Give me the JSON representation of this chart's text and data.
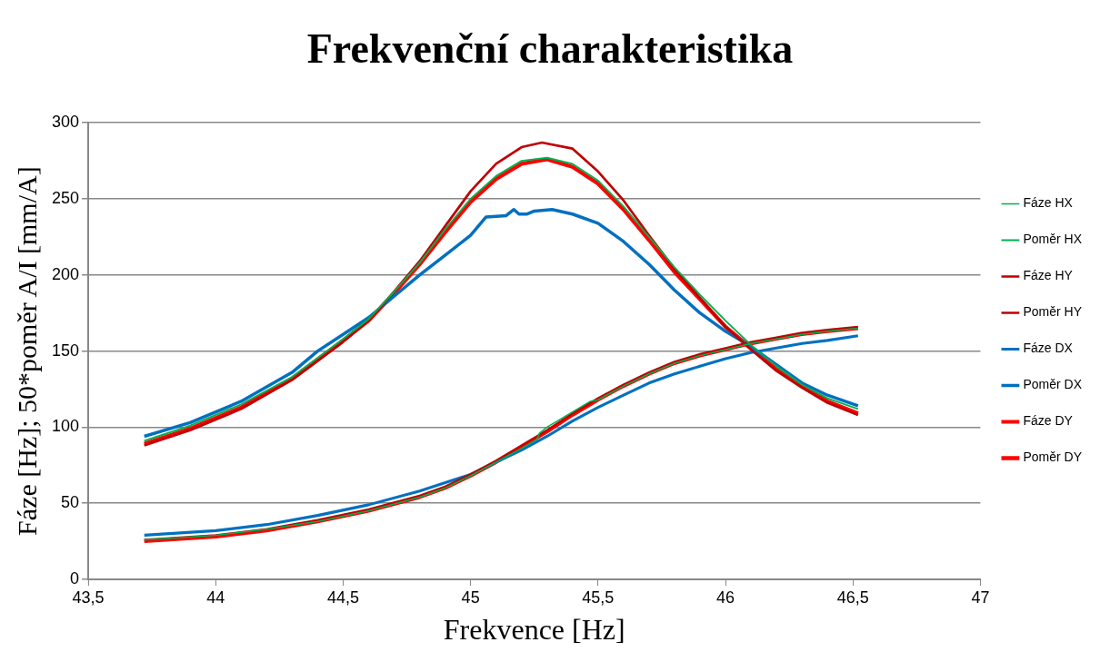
{
  "chart_data": {
    "type": "line",
    "title": "Frekvenční charakteristika",
    "xlabel": "Frekvence [Hz]",
    "ylabel": "Fáze [Hz]; 50*poměr A/I [mm/A]",
    "xlim": [
      43.5,
      47
    ],
    "xticks": [
      {
        "value": 43.5,
        "label": "43,5"
      },
      44,
      {
        "value": 44.5,
        "label": "44,5"
      },
      45,
      {
        "value": 45.5,
        "label": "45,5"
      },
      46,
      {
        "value": 46.5,
        "label": "46,5"
      },
      47
    ],
    "ylim": [
      0,
      300
    ],
    "yticks": [
      0,
      50,
      100,
      150,
      200,
      250,
      300
    ],
    "grid": "y",
    "legend": "right",
    "marker": "none",
    "line_style": "solid",
    "series": [
      {
        "name": "Fáze HX",
        "color": "#00b050",
        "x": [
          43.72,
          44.0,
          44.2,
          44.4,
          44.6,
          44.8,
          44.9,
          45.0,
          45.1,
          45.2,
          45.26,
          45.27,
          45.3,
          45.4,
          45.47,
          45.5,
          45.6,
          45.7,
          45.8,
          45.9,
          46.0,
          46.1,
          46.2,
          46.3,
          46.4,
          46.52
        ],
        "values": [
          26,
          29,
          33,
          38,
          45,
          54,
          60,
          68,
          77,
          86,
          92,
          96,
          100,
          110,
          117,
          118,
          127,
          135,
          142,
          147,
          151,
          155,
          158,
          161,
          163,
          165
        ]
      },
      {
        "name": "Poměr HX",
        "color": "#00b050",
        "x": [
          43.72,
          43.9,
          44.1,
          44.3,
          44.5,
          44.6,
          44.7,
          44.8,
          44.9,
          45.0,
          45.1,
          45.2,
          45.3,
          45.4,
          45.5,
          45.6,
          45.7,
          45.8,
          45.9,
          46.0,
          46.1,
          46.2,
          46.3,
          46.4,
          46.52
        ],
        "values": [
          91,
          101,
          115,
          133,
          158,
          171,
          189,
          208,
          230,
          250,
          265,
          275,
          277,
          273,
          262,
          245,
          225,
          205,
          187,
          170,
          154,
          140,
          128,
          119,
          112
        ]
      },
      {
        "name": "Fáze HY",
        "color": "#c00000",
        "x": [
          43.72,
          44.0,
          44.2,
          44.4,
          44.6,
          44.8,
          44.9,
          45.0,
          45.1,
          45.2,
          45.3,
          45.4,
          45.5,
          45.6,
          45.7,
          45.8,
          45.9,
          46.0,
          46.1,
          46.2,
          46.3,
          46.4,
          46.52
        ],
        "values": [
          26,
          29,
          33,
          39,
          46,
          55,
          61,
          69,
          78,
          88,
          98,
          109,
          119,
          128,
          136,
          143,
          148,
          152,
          156,
          159,
          162,
          164,
          166
        ]
      },
      {
        "name": "Poměr HY",
        "color": "#c00000",
        "x": [
          43.72,
          43.9,
          44.1,
          44.3,
          44.5,
          44.6,
          44.7,
          44.8,
          44.9,
          45.0,
          45.1,
          45.2,
          45.28,
          45.4,
          45.5,
          45.6,
          45.7,
          45.8,
          45.9,
          46.0,
          46.1,
          46.2,
          46.3,
          46.4,
          46.52
        ],
        "values": [
          88,
          98,
          112,
          131,
          156,
          170,
          189,
          209,
          232,
          255,
          273,
          284,
          287,
          283,
          268,
          249,
          226,
          204,
          185,
          166,
          151,
          137,
          126,
          116,
          108
        ]
      },
      {
        "name": "Fáze DX",
        "color": "#0070c0",
        "x": [
          43.72,
          44.0,
          44.2,
          44.4,
          44.6,
          44.8,
          45.0,
          45.1,
          45.2,
          45.3,
          45.4,
          45.5,
          45.6,
          45.7,
          45.8,
          45.9,
          46.0,
          46.1,
          46.2,
          46.3,
          46.4,
          46.52
        ],
        "values": [
          29,
          32,
          36,
          42,
          49,
          58,
          69,
          77,
          85,
          94,
          104,
          113,
          121,
          129,
          135,
          140,
          145,
          149,
          152,
          155,
          157,
          160
        ]
      },
      {
        "name": "Poměr DX",
        "color": "#0070c0",
        "x": [
          43.72,
          43.9,
          44.1,
          44.3,
          44.4,
          44.5,
          44.6,
          44.7,
          44.8,
          44.9,
          45.0,
          45.06,
          45.14,
          45.17,
          45.19,
          45.22,
          45.25,
          45.32,
          45.4,
          45.5,
          45.6,
          45.7,
          45.8,
          45.9,
          46.0,
          46.1,
          46.2,
          46.3,
          46.4,
          46.52
        ],
        "values": [
          94,
          103,
          117,
          136,
          150,
          161,
          172,
          186,
          200,
          213,
          226,
          238,
          239,
          243,
          240,
          240,
          242,
          243,
          240,
          234,
          222,
          207,
          190,
          175,
          163,
          153,
          141,
          129,
          121,
          114
        ]
      },
      {
        "name": "Fáze DY",
        "color": "#ff0000",
        "x": [
          43.72,
          44.0,
          44.2,
          44.4,
          44.6,
          44.8,
          44.9,
          45.0,
          45.1,
          45.2,
          45.3,
          45.4,
          45.5,
          45.6,
          45.7,
          45.8,
          45.9,
          46.0,
          46.1,
          46.2,
          46.3,
          46.4,
          46.52
        ],
        "values": [
          25,
          28,
          32,
          38,
          45,
          54,
          60,
          68,
          77,
          87,
          97,
          108,
          118,
          127,
          135,
          142,
          147,
          151,
          155,
          158,
          161,
          163,
          165
        ]
      },
      {
        "name": "Poměr DY",
        "color": "#ff0000",
        "x": [
          43.72,
          43.9,
          44.1,
          44.3,
          44.5,
          44.6,
          44.7,
          44.8,
          44.9,
          45.0,
          45.1,
          45.2,
          45.3,
          45.4,
          45.5,
          45.6,
          45.7,
          45.8,
          45.9,
          46.0,
          46.1,
          46.2,
          46.3,
          46.4,
          46.52
        ],
        "values": [
          89,
          99,
          113,
          132,
          157,
          170,
          188,
          207,
          228,
          248,
          263,
          273,
          276,
          271,
          260,
          243,
          223,
          202,
          184,
          166,
          152,
          138,
          127,
          117,
          109
        ]
      }
    ]
  }
}
